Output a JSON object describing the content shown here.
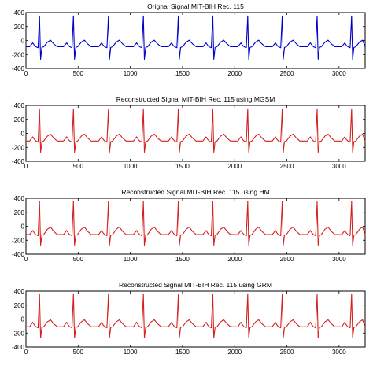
{
  "chart_data": [
    {
      "type": "line",
      "title": "Orignal Signal MIT-BIH Rec. 115",
      "xlabel": "",
      "ylabel": "",
      "xlim": [
        0,
        3250
      ],
      "ylim": [
        -400,
        400
      ],
      "xticks": [
        0,
        500,
        1000,
        1500,
        2000,
        2500,
        3000
      ],
      "yticks": [
        -400,
        -200,
        0,
        200,
        400
      ],
      "grid": false,
      "color": "#0000c8",
      "series": [
        {
          "beat_x": [
            130,
            455,
            790,
            1125,
            1460,
            1790,
            2125,
            2455,
            2790,
            3120
          ],
          "r_peak": 350,
          "s_trough": -270,
          "p_wave": -35,
          "t_wave": 5,
          "baseline": -90
        }
      ]
    },
    {
      "type": "line",
      "title": "Reconstructed Signal MIT-BIH Rec. 115 using MGSM",
      "xlabel": "",
      "ylabel": "",
      "xlim": [
        0,
        3250
      ],
      "ylim": [
        -400,
        400
      ],
      "xticks": [
        0,
        500,
        1000,
        1500,
        2000,
        2500,
        3000
      ],
      "yticks": [
        -400,
        -200,
        0,
        200,
        400
      ],
      "grid": false,
      "color": "#d42020",
      "series": [
        {
          "beat_x": [
            130,
            455,
            790,
            1125,
            1460,
            1790,
            2125,
            2455,
            2790,
            3120
          ],
          "r_peak": 350,
          "s_trough": -270,
          "p_wave": -50,
          "t_wave": -10,
          "baseline": -110
        }
      ]
    },
    {
      "type": "line",
      "title": "Reconstructed Signal MIT-BIH Rec. 115 using HM",
      "xlabel": "",
      "ylabel": "",
      "xlim": [
        0,
        3250
      ],
      "ylim": [
        -400,
        400
      ],
      "xticks": [
        0,
        500,
        1000,
        1500,
        2000,
        2500,
        3000
      ],
      "yticks": [
        -400,
        -200,
        0,
        200,
        400
      ],
      "grid": false,
      "color": "#d42020",
      "series": [
        {
          "beat_x": [
            130,
            455,
            790,
            1125,
            1460,
            1790,
            2125,
            2455,
            2790,
            3120
          ],
          "r_peak": 350,
          "s_trough": -270,
          "p_wave": -60,
          "t_wave": -10,
          "baseline": -120
        }
      ]
    },
    {
      "type": "line",
      "title": "Reconstructed Signal MIT-BIH Rec. 115 using GRM",
      "xlabel": "",
      "ylabel": "",
      "xlim": [
        0,
        3250
      ],
      "ylim": [
        -400,
        400
      ],
      "xticks": [
        0,
        500,
        1000,
        1500,
        2000,
        2500,
        3000
      ],
      "yticks": [
        -400,
        -200,
        0,
        200,
        400
      ],
      "grid": false,
      "color": "#d42020",
      "series": [
        {
          "beat_x": [
            130,
            455,
            790,
            1125,
            1460,
            1790,
            2125,
            2455,
            2790,
            3120
          ],
          "r_peak": 350,
          "s_trough": -270,
          "p_wave": -45,
          "t_wave": -10,
          "baseline": -110
        }
      ]
    }
  ]
}
